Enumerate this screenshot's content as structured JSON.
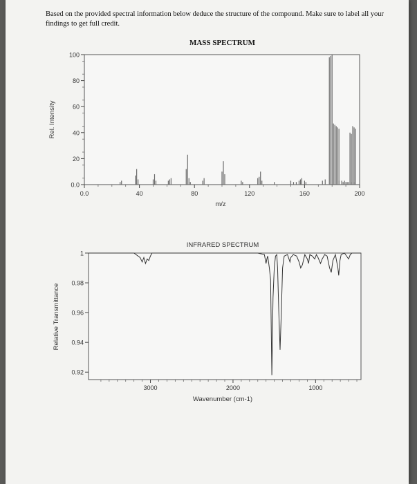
{
  "question": "Based on the provided spectral information below deduce the structure of the compound. Make sure to label all your findings to get full credit.",
  "chart_data": [
    {
      "type": "bar",
      "title": "MASS SPECTRUM",
      "xlabel": "m/z",
      "ylabel": "Rel. Intensity",
      "xlim": [
        0,
        200
      ],
      "ylim": [
        0,
        100
      ],
      "x_ticks": [
        "0.0",
        "40",
        "80",
        "120",
        "160",
        "200"
      ],
      "y_ticks": [
        "0.0",
        "20",
        "40",
        "60",
        "80",
        "100"
      ],
      "grid": false,
      "peaks": [
        {
          "mz": 26,
          "intensity": 2
        },
        {
          "mz": 27,
          "intensity": 3
        },
        {
          "mz": 37,
          "intensity": 7
        },
        {
          "mz": 38,
          "intensity": 12
        },
        {
          "mz": 39,
          "intensity": 4
        },
        {
          "mz": 50,
          "intensity": 4
        },
        {
          "mz": 51,
          "intensity": 8
        },
        {
          "mz": 52,
          "intensity": 3
        },
        {
          "mz": 61,
          "intensity": 3
        },
        {
          "mz": 62,
          "intensity": 4
        },
        {
          "mz": 63,
          "intensity": 5
        },
        {
          "mz": 74,
          "intensity": 12
        },
        {
          "mz": 75,
          "intensity": 23
        },
        {
          "mz": 76,
          "intensity": 5
        },
        {
          "mz": 77,
          "intensity": 2
        },
        {
          "mz": 86,
          "intensity": 3
        },
        {
          "mz": 87,
          "intensity": 5
        },
        {
          "mz": 100,
          "intensity": 10
        },
        {
          "mz": 101,
          "intensity": 18
        },
        {
          "mz": 102,
          "intensity": 8
        },
        {
          "mz": 114,
          "intensity": 3
        },
        {
          "mz": 115,
          "intensity": 2
        },
        {
          "mz": 126,
          "intensity": 5
        },
        {
          "mz": 127,
          "intensity": 6
        },
        {
          "mz": 128,
          "intensity": 10
        },
        {
          "mz": 129,
          "intensity": 3
        },
        {
          "mz": 138,
          "intensity": 2
        },
        {
          "mz": 150,
          "intensity": 3
        },
        {
          "mz": 152,
          "intensity": 2
        },
        {
          "mz": 154,
          "intensity": 2
        },
        {
          "mz": 156,
          "intensity": 3
        },
        {
          "mz": 157,
          "intensity": 4
        },
        {
          "mz": 158,
          "intensity": 5
        },
        {
          "mz": 160,
          "intensity": 3
        },
        {
          "mz": 161,
          "intensity": 2
        },
        {
          "mz": 173,
          "intensity": 3
        },
        {
          "mz": 175,
          "intensity": 4
        },
        {
          "mz": 185,
          "intensity": 3
        },
        {
          "mz": 187,
          "intensity": 3
        },
        {
          "mz": 188,
          "intensity": 2
        },
        {
          "mz": 189,
          "intensity": 3
        },
        {
          "mz": 190,
          "intensity": 2
        },
        {
          "mz": 191,
          "intensity": 2
        },
        {
          "mz": 192,
          "intensity": 2
        },
        {
          "mz": 194,
          "intensity": 2
        },
        {
          "mz": 196,
          "intensity": 2
        },
        {
          "mz": 181,
          "intensity": 47
        },
        {
          "mz": 182,
          "intensity": 46
        },
        {
          "mz": 183,
          "intensity": 45
        },
        {
          "mz": 184,
          "intensity": 44
        },
        {
          "mz": 185,
          "intensity": 43
        },
        {
          "mz": 195,
          "intensity": 45
        },
        {
          "mz": 196,
          "intensity": 44
        },
        {
          "mz": 197,
          "intensity": 43
        },
        {
          "mz": 193,
          "intensity": 40
        },
        {
          "mz": 194,
          "intensity": 39
        },
        {
          "mz": 180,
          "intensity": 100
        },
        {
          "mz": 179,
          "intensity": 99
        },
        {
          "mz": 178,
          "intensity": 98
        }
      ]
    },
    {
      "type": "line",
      "title": "INFRARED SPECTRUM",
      "xlabel": "Wavenumber (cm-1)",
      "ylabel": "Relative Transmittance",
      "xlim": [
        3750,
        450
      ],
      "ylim": [
        0.915,
        1.0
      ],
      "x_ticks": [
        "3000",
        "2000",
        "1000"
      ],
      "y_ticks": [
        "0.92",
        "0.94",
        "0.96",
        "0.98",
        "1"
      ],
      "grid": false,
      "points": [
        [
          3750,
          1.0
        ],
        [
          3500,
          1.0
        ],
        [
          3200,
          1.0
        ],
        [
          3125,
          0.997
        ],
        [
          3100,
          0.994
        ],
        [
          3080,
          0.997
        ],
        [
          3060,
          0.993
        ],
        [
          3040,
          0.996
        ],
        [
          3020,
          0.995
        ],
        [
          3000,
          0.998
        ],
        [
          2980,
          1.0
        ],
        [
          2600,
          1.0
        ],
        [
          2200,
          1.0
        ],
        [
          1800,
          1.0
        ],
        [
          1700,
          1.0
        ],
        [
          1620,
          0.999
        ],
        [
          1600,
          0.993
        ],
        [
          1590,
          0.996
        ],
        [
          1580,
          0.998
        ],
        [
          1560,
          0.99
        ],
        [
          1545,
          0.982
        ],
        [
          1530,
          0.918
        ],
        [
          1515,
          0.97
        ],
        [
          1500,
          0.99
        ],
        [
          1485,
          0.998
        ],
        [
          1470,
          0.999
        ],
        [
          1460,
          0.99
        ],
        [
          1445,
          0.96
        ],
        [
          1430,
          0.935
        ],
        [
          1415,
          0.96
        ],
        [
          1400,
          0.99
        ],
        [
          1380,
          0.998
        ],
        [
          1340,
          0.999
        ],
        [
          1310,
          0.994
        ],
        [
          1300,
          0.997
        ],
        [
          1270,
          0.999
        ],
        [
          1230,
          0.998
        ],
        [
          1200,
          0.994
        ],
        [
          1180,
          0.99
        ],
        [
          1160,
          0.992
        ],
        [
          1130,
          0.999
        ],
        [
          1100,
          0.996
        ],
        [
          1085,
          0.993
        ],
        [
          1070,
          0.999
        ],
        [
          1040,
          0.998
        ],
        [
          1010,
          0.996
        ],
        [
          990,
          0.999
        ],
        [
          970,
          0.997
        ],
        [
          940,
          0.993
        ],
        [
          920,
          0.996
        ],
        [
          890,
          0.999
        ],
        [
          860,
          0.998
        ],
        [
          830,
          0.99
        ],
        [
          810,
          0.987
        ],
        [
          790,
          0.995
        ],
        [
          760,
          0.999
        ],
        [
          730,
          0.99
        ],
        [
          720,
          0.985
        ],
        [
          705,
          0.995
        ],
        [
          690,
          0.999
        ],
        [
          650,
          1.0
        ],
        [
          600,
          0.996
        ],
        [
          580,
          0.999
        ],
        [
          560,
          1.0
        ],
        [
          450,
          1.0
        ]
      ]
    }
  ]
}
